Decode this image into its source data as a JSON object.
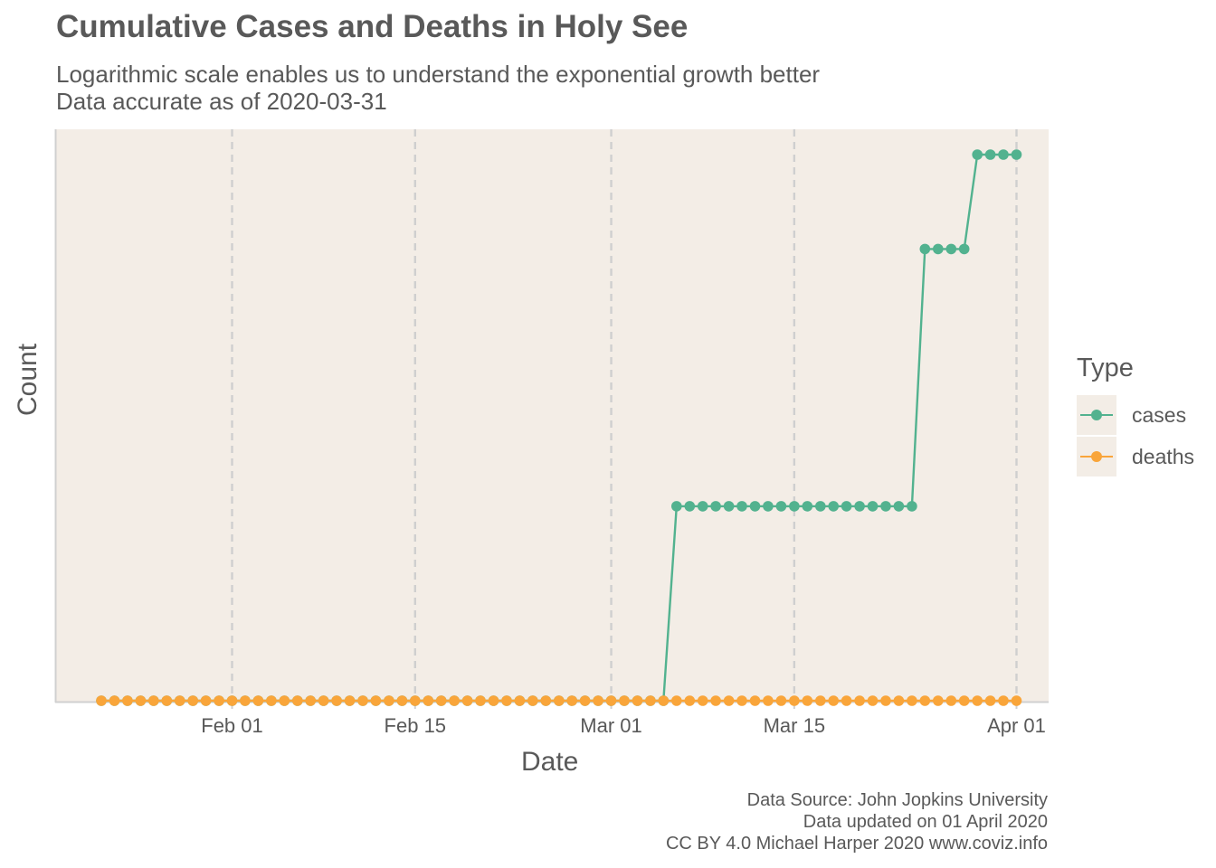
{
  "chart_data": {
    "type": "line",
    "title": "Cumulative Cases and Deaths in Holy See",
    "subtitle_lines": [
      "Logarithmic scale enables us to understand the exponential growth better",
      "Data accurate as of 2020-03-31"
    ],
    "xlabel": "Date",
    "ylabel": "Count",
    "y_scale": "log",
    "y_tick_labels_shown": false,
    "grid": "vertical dashed at x ticks",
    "background": "#f3ede6",
    "x_ticks": [
      "2020-02-01",
      "2020-02-15",
      "2020-03-01",
      "2020-03-15",
      "2020-04-01"
    ],
    "x_tick_labels": [
      "Feb 01",
      "Feb 15",
      "Mar 01",
      "Mar 15",
      "Apr 01"
    ],
    "x_range": [
      "2020-01-18",
      "2020-04-03"
    ],
    "x_start": "2020-01-22",
    "legend_title": "Type",
    "legend_position": "right",
    "series": [
      {
        "name": "cases",
        "color": "#52b28f",
        "values": [
          0,
          0,
          0,
          0,
          0,
          0,
          0,
          0,
          0,
          0,
          0,
          0,
          0,
          0,
          0,
          0,
          0,
          0,
          0,
          0,
          0,
          0,
          0,
          0,
          0,
          0,
          0,
          0,
          0,
          0,
          0,
          0,
          0,
          0,
          0,
          0,
          0,
          0,
          0,
          0,
          0,
          0,
          0,
          0,
          1,
          1,
          1,
          1,
          1,
          1,
          1,
          1,
          1,
          1,
          1,
          1,
          1,
          1,
          1,
          1,
          1,
          1,
          1,
          4,
          4,
          4,
          4,
          6,
          6,
          6,
          6
        ]
      },
      {
        "name": "deaths",
        "color": "#f9a53a",
        "values": [
          0,
          0,
          0,
          0,
          0,
          0,
          0,
          0,
          0,
          0,
          0,
          0,
          0,
          0,
          0,
          0,
          0,
          0,
          0,
          0,
          0,
          0,
          0,
          0,
          0,
          0,
          0,
          0,
          0,
          0,
          0,
          0,
          0,
          0,
          0,
          0,
          0,
          0,
          0,
          0,
          0,
          0,
          0,
          0,
          0,
          0,
          0,
          0,
          0,
          0,
          0,
          0,
          0,
          0,
          0,
          0,
          0,
          0,
          0,
          0,
          0,
          0,
          0,
          0,
          0,
          0,
          0,
          0,
          0,
          0,
          0
        ]
      }
    ]
  },
  "caption": {
    "line1": "Data Source: John Jopkins University",
    "line2": "Data updated on 01 April 2020",
    "line3": "CC BY 4.0 Michael Harper 2020 www.coviz.info"
  }
}
